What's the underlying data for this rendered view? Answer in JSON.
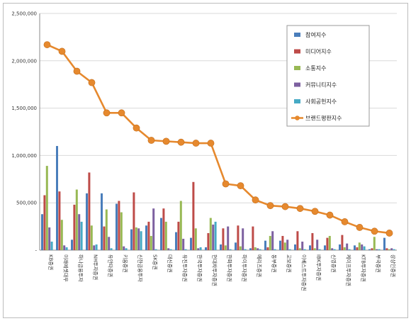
{
  "chart_data": {
    "type": "bar+line",
    "title": "",
    "xlabel": "",
    "ylabel": "",
    "ylim": [
      0,
      2500000
    ],
    "yticks": [
      0,
      500000,
      1000000,
      1500000,
      2000000,
      2500000
    ],
    "ytick_labels": [
      "-",
      "500,000",
      "1,000,000",
      "1,500,000",
      "2,000,000",
      "2,500,000"
    ],
    "grid": "horizontal",
    "legend_position": "top-right",
    "categories": [
      "KB증권",
      "미래에셋대우",
      "하나금융투자",
      "NH투자증권",
      "유안타증권",
      "키움증권",
      "신한금융투자",
      "SK증권",
      "대신증권",
      "유진투자증권",
      "한국투자증권",
      "현대차투자증권",
      "한화투자증권",
      "하이투자증권",
      "메리츠증권",
      "동부증권",
      "교보증권",
      "이베스트투자증권",
      "IBK투자증권",
      "신영증권",
      "케이프투자증권",
      "KTB투자증권",
      "부국증권",
      "상상인증권"
    ],
    "series": [
      {
        "name": "참여지수",
        "type": "bar",
        "color": "#4a7ebb",
        "values": [
          380000,
          1100000,
          110000,
          600000,
          600000,
          490000,
          220000,
          260000,
          340000,
          190000,
          130000,
          30000,
          60000,
          80000,
          20000,
          100000,
          100000,
          60000,
          50000,
          50000,
          60000,
          50000,
          10000,
          130000
        ]
      },
      {
        "name": "미디어지수",
        "type": "bar",
        "color": "#be4b48",
        "values": [
          580000,
          620000,
          480000,
          820000,
          250000,
          520000,
          610000,
          300000,
          440000,
          300000,
          720000,
          180000,
          230000,
          260000,
          250000,
          30000,
          150000,
          200000,
          180000,
          130000,
          160000,
          30000,
          20000,
          20000
        ]
      },
      {
        "name": "소통지수",
        "type": "bar",
        "color": "#98b954",
        "values": [
          890000,
          320000,
          640000,
          260000,
          430000,
          400000,
          240000,
          150000,
          300000,
          520000,
          230000,
          340000,
          50000,
          40000,
          30000,
          150000,
          80000,
          20000,
          20000,
          150000,
          30000,
          80000,
          140000,
          10000
        ]
      },
      {
        "name": "커뮤니티지수",
        "type": "bar",
        "color": "#7d60a0",
        "values": [
          240000,
          50000,
          380000,
          50000,
          140000,
          40000,
          230000,
          440000,
          20000,
          120000,
          20000,
          270000,
          250000,
          230000,
          20000,
          200000,
          110000,
          90000,
          110000,
          20000,
          70000,
          60000,
          10000,
          20000
        ]
      },
      {
        "name": "사회공헌지수",
        "type": "bar",
        "color": "#46aac5",
        "values": [
          90000,
          30000,
          300000,
          60000,
          20000,
          20000,
          200000,
          10000,
          10000,
          10000,
          30000,
          300000,
          10000,
          10000,
          10000,
          10000,
          10000,
          10000,
          10000,
          10000,
          10000,
          40000,
          10000,
          10000
        ]
      },
      {
        "name": "브랜드평판지수",
        "type": "line",
        "color": "#e6892e",
        "values": [
          2170000,
          2100000,
          1890000,
          1770000,
          1450000,
          1450000,
          1290000,
          1160000,
          1150000,
          1140000,
          1130000,
          1130000,
          700000,
          680000,
          530000,
          470000,
          460000,
          440000,
          410000,
          370000,
          300000,
          240000,
          200000,
          180000
        ]
      }
    ]
  }
}
